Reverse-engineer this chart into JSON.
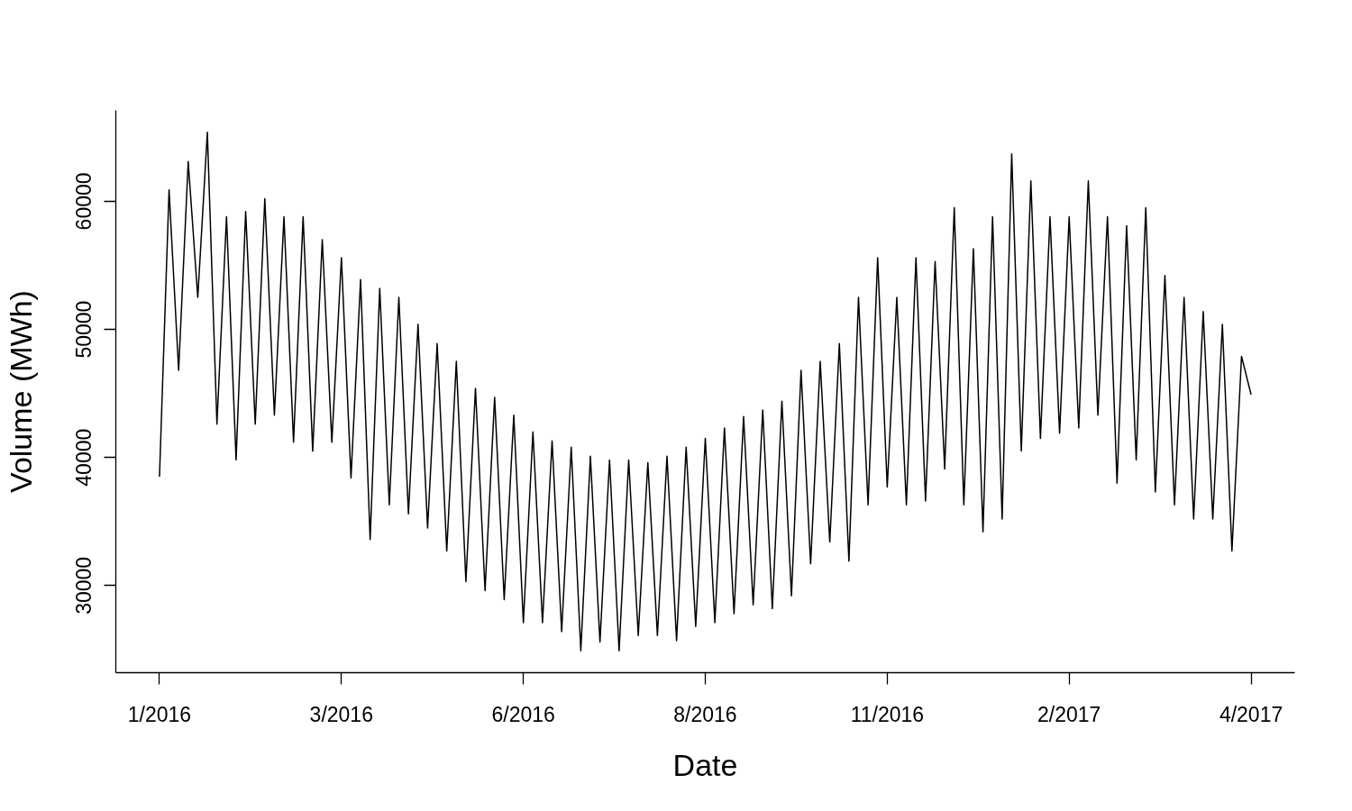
{
  "chart_data": {
    "type": "line",
    "xlabel": "Date",
    "ylabel": "Volume (MWh)",
    "categories": [
      "1/2016",
      null,
      null,
      null,
      null,
      null,
      null,
      null,
      null,
      null,
      null,
      null,
      null,
      null,
      null,
      null,
      null,
      null,
      null,
      "3/2016",
      null,
      null,
      null,
      null,
      null,
      null,
      null,
      null,
      null,
      null,
      null,
      null,
      null,
      null,
      null,
      null,
      null,
      null,
      "6/2016",
      null,
      null,
      null,
      null,
      null,
      null,
      null,
      null,
      null,
      null,
      null,
      null,
      null,
      null,
      null,
      null,
      null,
      null,
      "8/2016",
      null,
      null,
      null,
      null,
      null,
      null,
      null,
      null,
      null,
      null,
      null,
      null,
      null,
      null,
      null,
      null,
      null,
      null,
      "11/2016",
      null,
      null,
      null,
      null,
      null,
      null,
      null,
      null,
      null,
      null,
      null,
      null,
      null,
      null,
      null,
      null,
      null,
      null,
      "2/2017",
      null,
      null,
      null,
      null,
      null,
      null,
      null,
      null,
      null,
      null,
      null,
      null,
      null,
      null,
      null,
      null,
      null,
      null,
      "4/2017"
    ],
    "series": [
      {
        "color": "#000000",
        "values": [
          38500,
          60900,
          46800,
          63100,
          52500,
          65400,
          42600,
          58800,
          39800,
          59200,
          42600,
          60200,
          43300,
          58800,
          41200,
          58800,
          40500,
          57000,
          41200,
          55600,
          38400,
          53900,
          33600,
          53200,
          36300,
          52500,
          35600,
          50400,
          34500,
          48900,
          32700,
          47500,
          30300,
          45400,
          29600,
          44700,
          28900,
          43300,
          27100,
          42000,
          27100,
          41300,
          26400,
          40800,
          24900,
          40100,
          25600,
          39800,
          24900,
          39800,
          26100,
          39600,
          26100,
          40100,
          25700,
          40800,
          26800,
          41500,
          27100,
          42300,
          27800,
          43200,
          28500,
          43700,
          28200,
          44400,
          29200,
          46800,
          31700,
          47500,
          33400,
          48900,
          31900,
          52500,
          36300,
          55600,
          37700,
          52500,
          36300,
          55600,
          36600,
          55300,
          39100,
          59500,
          36300,
          56300,
          34200,
          58800,
          35200,
          63700,
          40500,
          61600,
          41500,
          58800,
          41900,
          58800,
          42300,
          61600,
          43300,
          58800,
          38000,
          58100,
          39800,
          59500,
          37300,
          54200,
          36300,
          52500,
          35200,
          51400,
          35200,
          50400,
          32700,
          47900,
          44900
        ]
      }
    ],
    "ylim": [
      23200,
      67100
    ],
    "yticks": [
      30000,
      40000,
      50000,
      60000
    ],
    "grid": false
  }
}
